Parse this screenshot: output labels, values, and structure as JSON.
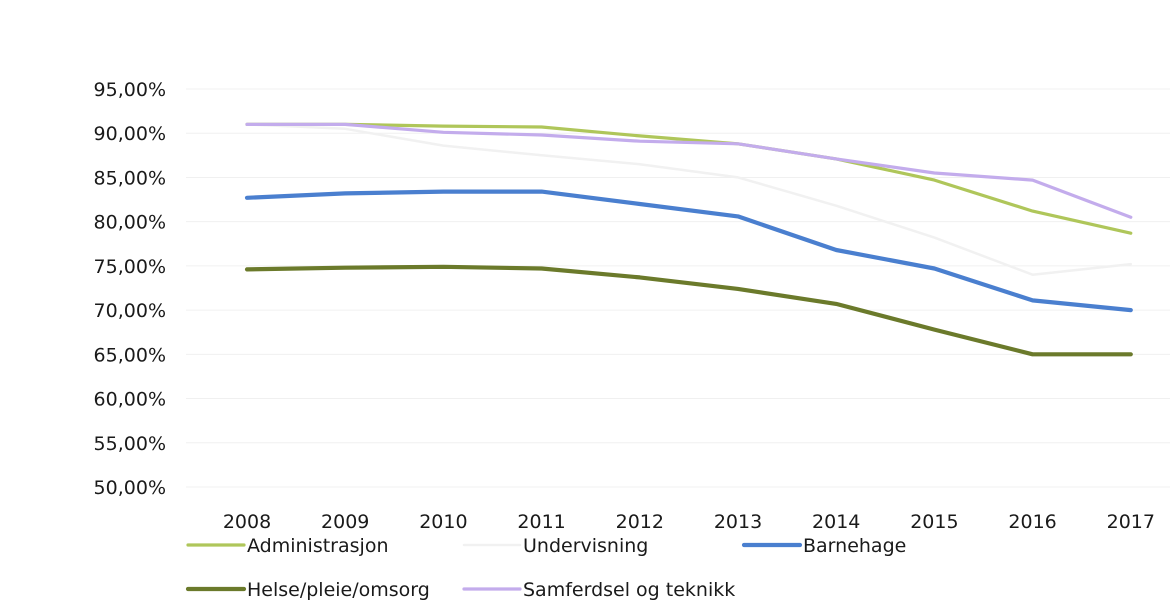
{
  "chart_data": {
    "type": "line",
    "title": "",
    "xlabel": "",
    "ylabel": "",
    "categories": [
      "2008",
      "2009",
      "2010",
      "2011",
      "2012",
      "2013",
      "2014",
      "2015",
      "2016",
      "2017"
    ],
    "ylim": [
      0.5,
      0.95
    ],
    "y_tick_values": [
      0.5,
      0.55,
      0.6,
      0.65,
      0.7,
      0.75,
      0.8,
      0.85,
      0.9,
      0.95
    ],
    "y_tick_labels": [
      "50,00%",
      "55,00%",
      "60,00%",
      "65,00%",
      "70,00%",
      "75,00%",
      "80,00%",
      "85,00%",
      "90,00%",
      "95,00%"
    ],
    "grid": true,
    "legend_position": "bottom",
    "series": [
      {
        "name": "Administrasjon",
        "color": "#afc65a",
        "values": [
          0.91,
          0.91,
          0.908,
          0.907,
          0.897,
          0.888,
          0.871,
          0.847,
          0.812,
          0.787
        ]
      },
      {
        "name": "Undervisning",
        "color": "#f1f1f1",
        "values": [
          0.91,
          0.905,
          0.886,
          0.875,
          0.865,
          0.85,
          0.818,
          0.782,
          0.74,
          0.752
        ]
      },
      {
        "name": "Barnehage",
        "color": "#4a7fcf",
        "values": [
          0.827,
          0.832,
          0.834,
          0.834,
          0.82,
          0.806,
          0.768,
          0.747,
          0.711,
          0.7
        ]
      },
      {
        "name": "Helse/pleie/omsorg",
        "color": "#6b7a2b",
        "values": [
          0.746,
          0.748,
          0.749,
          0.747,
          0.737,
          0.724,
          0.707,
          0.678,
          0.65,
          0.65
        ]
      },
      {
        "name": "Samferdsel og teknikk",
        "color": "#c3acec",
        "values": [
          0.91,
          0.91,
          0.901,
          0.898,
          0.891,
          0.888,
          0.871,
          0.855,
          0.847,
          0.805
        ]
      }
    ]
  }
}
